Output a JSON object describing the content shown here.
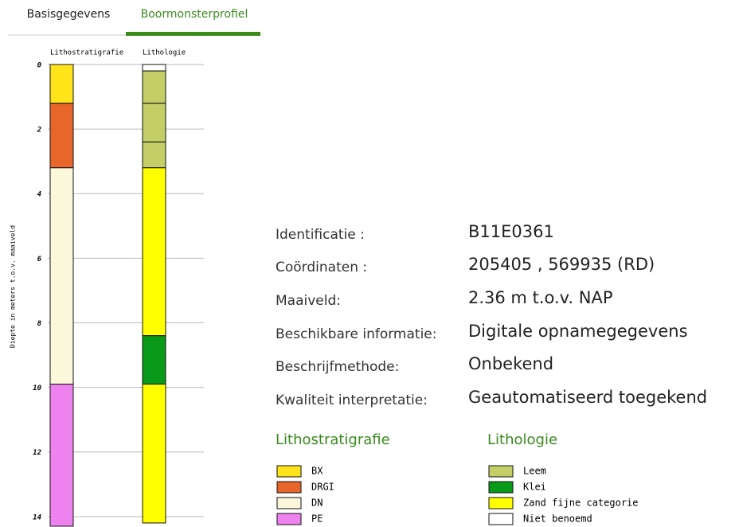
{
  "tabs": [
    "Basisgegevens",
    "Boormonsterprofiel"
  ],
  "profile": {
    "y_label": "Diepte in meters t.o.v. maaiveld",
    "ylim": [
      0,
      14.3
    ],
    "yticks": [
      0,
      2,
      4,
      6,
      8,
      10,
      12,
      14
    ],
    "columns": [
      {
        "title": "Lithostratigrafie",
        "intervals": [
          {
            "from": 0,
            "to": 1.2,
            "color": "#ffe41a"
          },
          {
            "from": 1.2,
            "to": 3.2,
            "color": "#e8662a"
          },
          {
            "from": 3.2,
            "to": 9.9,
            "color": "#fbf7da"
          },
          {
            "from": 9.9,
            "to": 14.3,
            "color": "#ee82ee"
          }
        ]
      },
      {
        "title": "Lithologie",
        "intervals": [
          {
            "from": 0,
            "to": 0.2,
            "color": "#ffffff"
          },
          {
            "from": 0.2,
            "to": 1.2,
            "color": "#c3cf66"
          },
          {
            "from": 1.2,
            "to": 2.4,
            "color": "#c3cf66"
          },
          {
            "from": 2.4,
            "to": 3.2,
            "color": "#c3cf66"
          },
          {
            "from": 3.2,
            "to": 8.4,
            "color": "#ffff00"
          },
          {
            "from": 8.4,
            "to": 9.9,
            "color": "#0a9a1a"
          },
          {
            "from": 9.9,
            "to": 14.2,
            "color": "#ffff00"
          }
        ]
      }
    ]
  },
  "info": [
    [
      "Identificatie :",
      "B11E0361"
    ],
    [
      "Coördinaten :",
      "205405 , 569935 (RD)"
    ],
    [
      "Maaiveld:",
      "2.36 m t.o.v. NAP"
    ],
    [
      "Beschikbare informatie:",
      "Digitale opnamegegevens"
    ],
    [
      "Beschrijfmethode:",
      "Onbekend"
    ],
    [
      "Kwaliteit interpretatie:",
      "Geautomatiseerd toegekend"
    ]
  ],
  "legends": [
    {
      "title": "Lithostratigrafie",
      "items": [
        {
          "name": "BX",
          "color": "#ffe41a"
        },
        {
          "name": "DRGI",
          "color": "#e8662a"
        },
        {
          "name": "DN",
          "color": "#fbf7da"
        },
        {
          "name": "PE",
          "color": "#ee82ee"
        }
      ]
    },
    {
      "title": "Lithologie",
      "items": [
        {
          "name": "Leem",
          "color": "#c3cf66"
        },
        {
          "name": "Klei",
          "color": "#0a9a1a"
        },
        {
          "name": "Zand fijne categorie",
          "color": "#ffff00"
        },
        {
          "name": "Niet benoemd",
          "color": "#ffffff"
        }
      ]
    }
  ]
}
